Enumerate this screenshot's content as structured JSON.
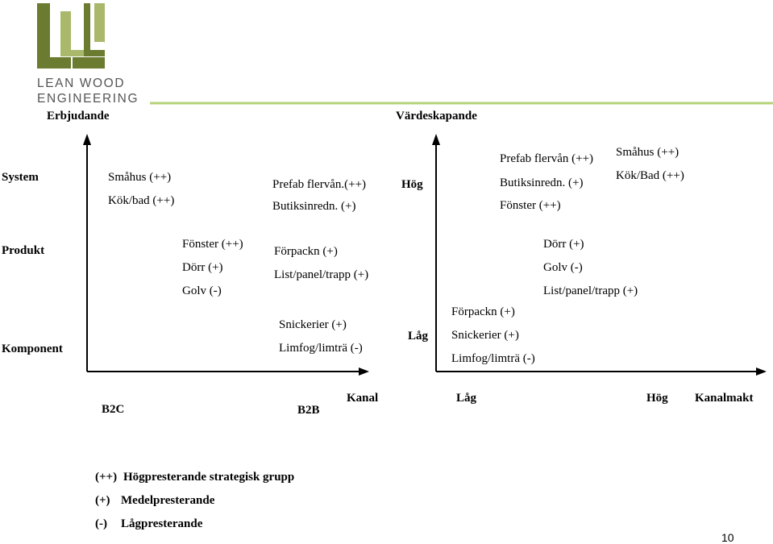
{
  "logo": {
    "line1": "LEAN WOOD",
    "line2": "ENGINEERING",
    "color_dark": "#6b7b2f",
    "color_light": "#a9b86b"
  },
  "header_line_color": "#b5d27a",
  "left_chart": {
    "y_title": "Erbjudande",
    "rows": {
      "system": "System",
      "produkt": "Produkt",
      "komponent": "Komponent"
    },
    "x_labels": {
      "b2c": "B2C",
      "b2b": "B2B"
    },
    "b2c_system": [
      "Småhus (++)",
      "Kök/bad (++)"
    ],
    "b2b_system": [
      "Prefab flervån.(++)",
      "Butiksinredn. (+)"
    ],
    "b2c_product": [
      "Fönster (++)",
      "Dörr (+)",
      "Golv (-)"
    ],
    "b2b_product": [
      "Förpackn (+)",
      "List/panel/trapp (+)"
    ],
    "b2b_component": [
      "Snickerier (+)",
      "Limfog/limträ (-)"
    ]
  },
  "right_chart": {
    "y_title": "Värdeskapande",
    "y_high": "Hög",
    "y_low": "Låg",
    "x_title": "Kanal",
    "x_low": "Låg",
    "x_high": "Hög",
    "x_end": "Kanalmakt",
    "high_mid": [
      "Prefab flervån (++)",
      "Butiksinredn. (+)",
      "Fönster (++)"
    ],
    "high_right": [
      "Småhus (++)",
      "Kök/Bad (++)"
    ],
    "mid_right": [
      "Dörr (+)",
      "Golv (-)",
      "List/panel/trapp (+)"
    ],
    "low_mid": [
      "Förpackn (+)",
      "Snickerier (+)",
      "Limfog/limträ (-)"
    ]
  },
  "legend": [
    {
      "key": "(++)",
      "text": "Högpresterande strategisk grupp"
    },
    {
      "key": "(+)",
      "text": "Medelpresterande"
    },
    {
      "key": "(-)",
      "text": "Lågpresterande"
    }
  ],
  "page_number": "10"
}
